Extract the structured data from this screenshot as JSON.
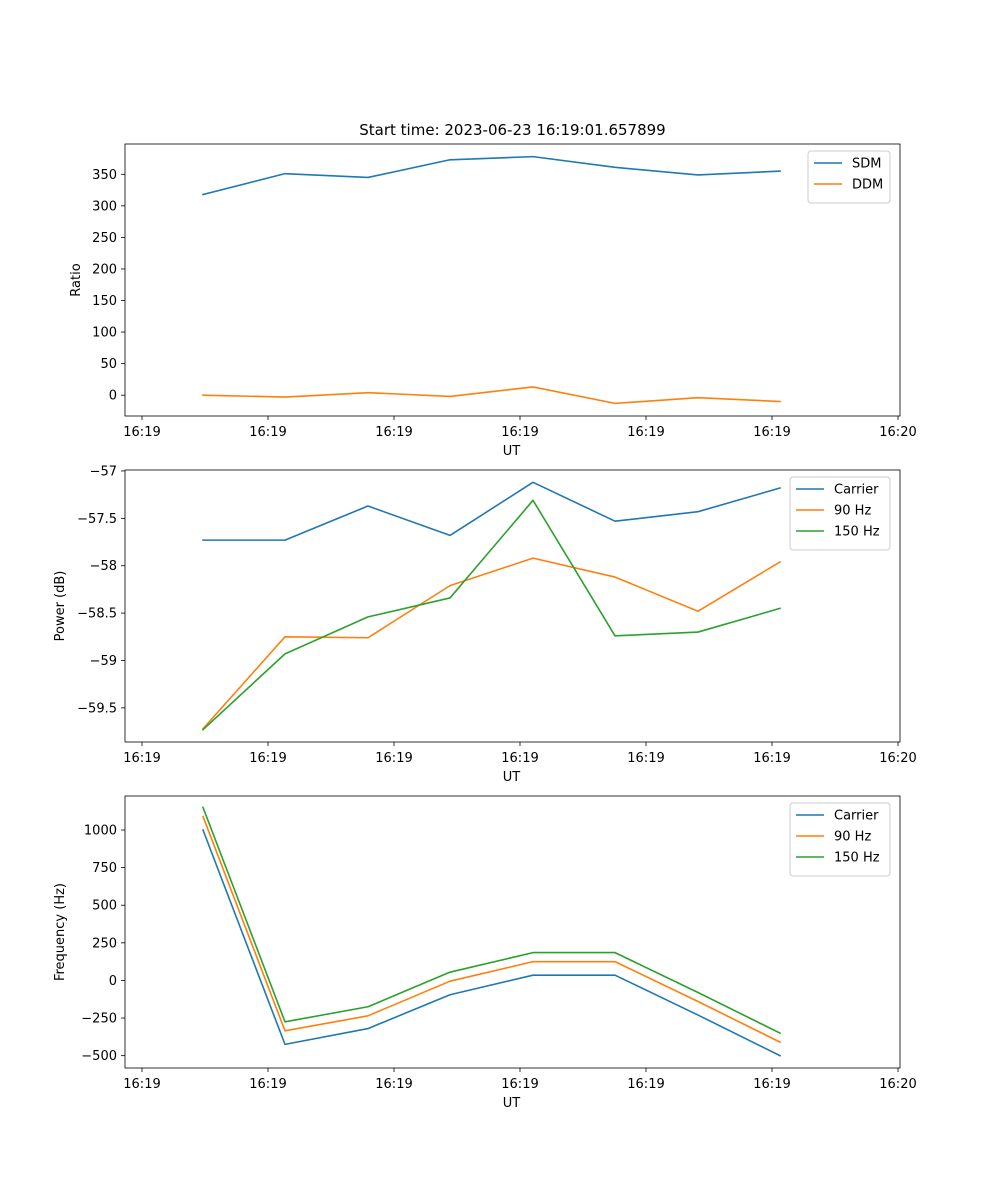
{
  "chart_data": [
    {
      "type": "line",
      "title": "Start time: 2023-06-23 16:19:01.657899",
      "xlabel": "UT",
      "ylabel": "Ratio",
      "xticks": [
        "16:19",
        "16:19",
        "16:19",
        "16:19",
        "16:19",
        "16:19",
        "16:19"
      ],
      "xticks_end": "16:20",
      "yticks": [
        0,
        50,
        100,
        150,
        200,
        250,
        300,
        350
      ],
      "ylim": [
        -33,
        398
      ],
      "legend": "top-right",
      "series": [
        {
          "name": "SDM",
          "color": "#1f77b4",
          "values": [
            318,
            351,
            345,
            373,
            378,
            361,
            349,
            355
          ]
        },
        {
          "name": "DDM",
          "color": "#ff7f0e",
          "values": [
            0,
            -3,
            4,
            -2,
            13,
            -13,
            -4,
            -10
          ]
        }
      ]
    },
    {
      "type": "line",
      "title": "",
      "xlabel": "UT",
      "ylabel": "Power (dB)",
      "xticks": [
        "16:19",
        "16:19",
        "16:19",
        "16:19",
        "16:19",
        "16:19",
        "16:19"
      ],
      "xticks_end": "16:20",
      "yticks": [
        -57.0,
        -57.5,
        -58.0,
        -58.5,
        -59.0,
        -59.5
      ],
      "ylim": [
        -59.86,
        -56.99
      ],
      "legend": "top-right",
      "series": [
        {
          "name": "Carrier",
          "color": "#1f77b4",
          "values": [
            -57.73,
            -57.73,
            -57.37,
            -57.68,
            -57.12,
            -57.53,
            -57.43,
            -57.18
          ]
        },
        {
          "name": "90 Hz",
          "color": "#ff7f0e",
          "values": [
            -59.72,
            -58.75,
            -58.76,
            -58.21,
            -57.92,
            -58.12,
            -58.48,
            -57.96
          ]
        },
        {
          "name": "150 Hz",
          "color": "#2ca02c",
          "values": [
            -59.73,
            -58.93,
            -58.54,
            -58.34,
            -57.31,
            -58.74,
            -58.7,
            -58.45
          ]
        }
      ]
    },
    {
      "type": "line",
      "title": "",
      "xlabel": "UT",
      "ylabel": "Frequency (Hz)",
      "xticks": [
        "16:19",
        "16:19",
        "16:19",
        "16:19",
        "16:19",
        "16:19",
        "16:19"
      ],
      "xticks_end": "16:20",
      "yticks": [
        1000,
        750,
        500,
        250,
        0,
        -250,
        -500
      ],
      "ylim": [
        -582,
        1226
      ],
      "legend": "top-right",
      "series": [
        {
          "name": "Carrier",
          "color": "#1f77b4",
          "values": [
            1000,
            -425,
            -320,
            -95,
            35,
            35,
            -230,
            -500
          ]
        },
        {
          "name": "90 Hz",
          "color": "#ff7f0e",
          "values": [
            1090,
            -335,
            -235,
            -5,
            125,
            125,
            -140,
            -410
          ]
        },
        {
          "name": "150 Hz",
          "color": "#2ca02c",
          "values": [
            1150,
            -275,
            -175,
            55,
            185,
            185,
            -80,
            -350
          ]
        }
      ]
    }
  ]
}
